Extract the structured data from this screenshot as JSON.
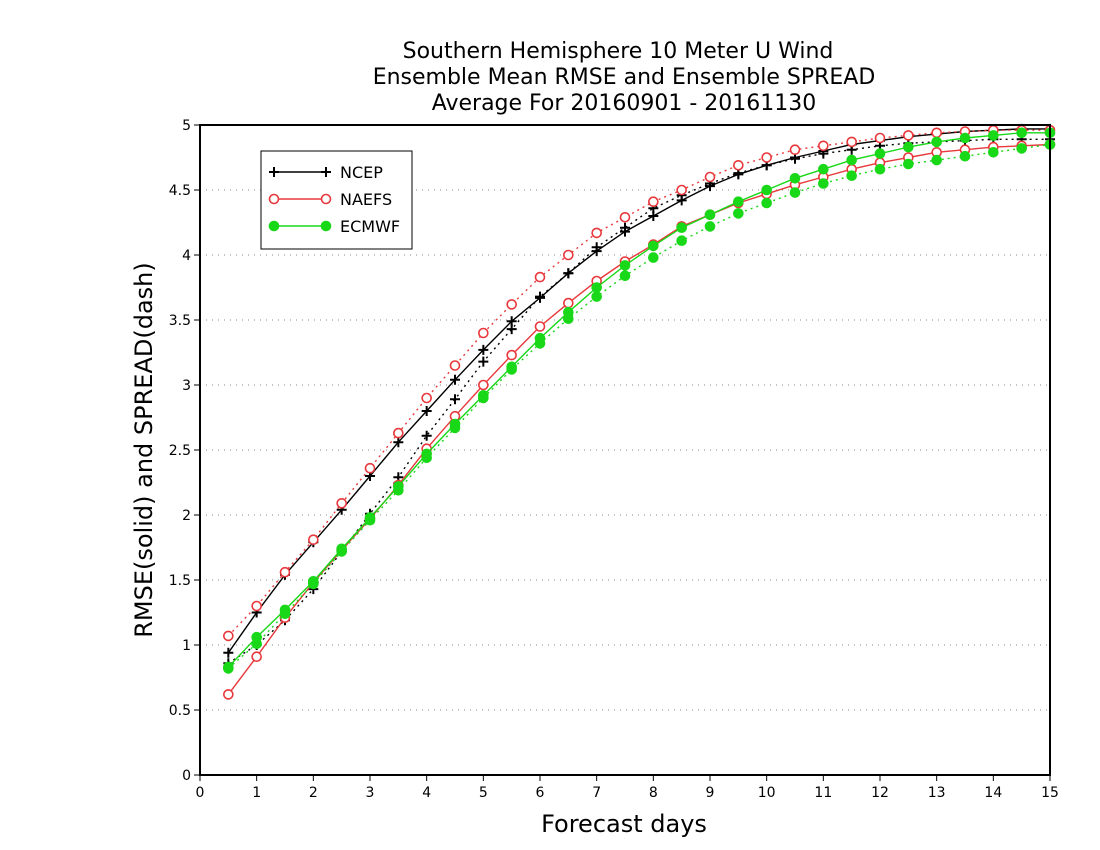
{
  "chart_data": {
    "type": "line",
    "title_lines": [
      "Southern Hemisphere 10 Meter U Wind",
      "Ensemble Mean RMSE and Ensemble SPREAD",
      "Average For 20160901 - 20161130"
    ],
    "xlabel": "Forecast days",
    "ylabel": "RMSE(solid) and SPREAD(dash)",
    "xlim": [
      0,
      15
    ],
    "ylim": [
      0,
      5
    ],
    "x_ticks": [
      "0",
      "1",
      "2",
      "3",
      "4",
      "5",
      "6",
      "7",
      "8",
      "9",
      "10",
      "11",
      "12",
      "13",
      "14",
      "15"
    ],
    "y_ticks": [
      "0",
      "0.5",
      "1",
      "1.5",
      "2",
      "2.5",
      "3",
      "3.5",
      "4",
      "4.5",
      "5"
    ],
    "y_grid": "dotted",
    "legend_position": "top-left",
    "x": [
      0.5,
      1,
      1.5,
      2,
      2.5,
      3,
      3.5,
      4,
      4.5,
      5,
      5.5,
      6,
      6.5,
      7,
      7.5,
      8,
      8.5,
      9,
      9.5,
      10,
      10.5,
      11,
      11.5,
      12,
      12.5,
      13,
      13.5,
      14,
      14.5,
      15
    ],
    "series": [
      {
        "name": "NCEP",
        "color": "#000000",
        "marker": "plus",
        "rmse": [
          0.94,
          1.25,
          1.54,
          1.79,
          2.04,
          2.3,
          2.56,
          2.8,
          3.04,
          3.27,
          3.49,
          3.67,
          3.86,
          4.03,
          4.18,
          4.3,
          4.42,
          4.53,
          4.62,
          4.69,
          4.75,
          4.8,
          4.85,
          4.88,
          4.91,
          4.93,
          4.95,
          4.96,
          4.97,
          4.97
        ],
        "spread": [
          0.86,
          1.0,
          1.19,
          1.43,
          1.72,
          2.01,
          2.29,
          2.61,
          2.89,
          3.18,
          3.43,
          3.68,
          3.86,
          4.06,
          4.21,
          4.36,
          4.46,
          4.55,
          4.63,
          4.69,
          4.74,
          4.78,
          4.81,
          4.84,
          4.86,
          4.87,
          4.88,
          4.89,
          4.89,
          4.89
        ]
      },
      {
        "name": "NAEFS",
        "color": "#e8383c",
        "marker": "open-circle",
        "rmse": [
          0.62,
          0.91,
          1.21,
          1.48,
          1.73,
          1.97,
          2.23,
          2.51,
          2.76,
          3.0,
          3.23,
          3.45,
          3.63,
          3.8,
          3.95,
          4.08,
          4.22,
          4.31,
          4.4,
          4.47,
          4.54,
          4.6,
          4.66,
          4.71,
          4.75,
          4.79,
          4.81,
          4.83,
          4.84,
          4.85
        ],
        "spread": [
          1.07,
          1.3,
          1.56,
          1.81,
          2.09,
          2.36,
          2.63,
          2.9,
          3.15,
          3.4,
          3.62,
          3.83,
          4.0,
          4.17,
          4.29,
          4.41,
          4.5,
          4.6,
          4.69,
          4.75,
          4.81,
          4.84,
          4.87,
          4.9,
          4.92,
          4.94,
          4.95,
          4.96,
          4.96,
          4.96
        ]
      },
      {
        "name": "ECMWF",
        "color": "#18d818",
        "marker": "filled-circle",
        "rmse": [
          0.83,
          1.06,
          1.27,
          1.49,
          1.74,
          1.98,
          2.22,
          2.47,
          2.7,
          2.92,
          3.14,
          3.36,
          3.56,
          3.75,
          3.92,
          4.07,
          4.21,
          4.31,
          4.41,
          4.5,
          4.59,
          4.66,
          4.73,
          4.78,
          4.83,
          4.87,
          4.9,
          4.92,
          4.94,
          4.94
        ],
        "spread": [
          0.82,
          1.01,
          1.24,
          1.47,
          1.72,
          1.96,
          2.19,
          2.44,
          2.67,
          2.9,
          3.12,
          3.32,
          3.51,
          3.68,
          3.84,
          3.98,
          4.11,
          4.22,
          4.32,
          4.4,
          4.48,
          4.55,
          4.61,
          4.66,
          4.7,
          4.73,
          4.76,
          4.79,
          4.82,
          4.85
        ]
      }
    ]
  }
}
